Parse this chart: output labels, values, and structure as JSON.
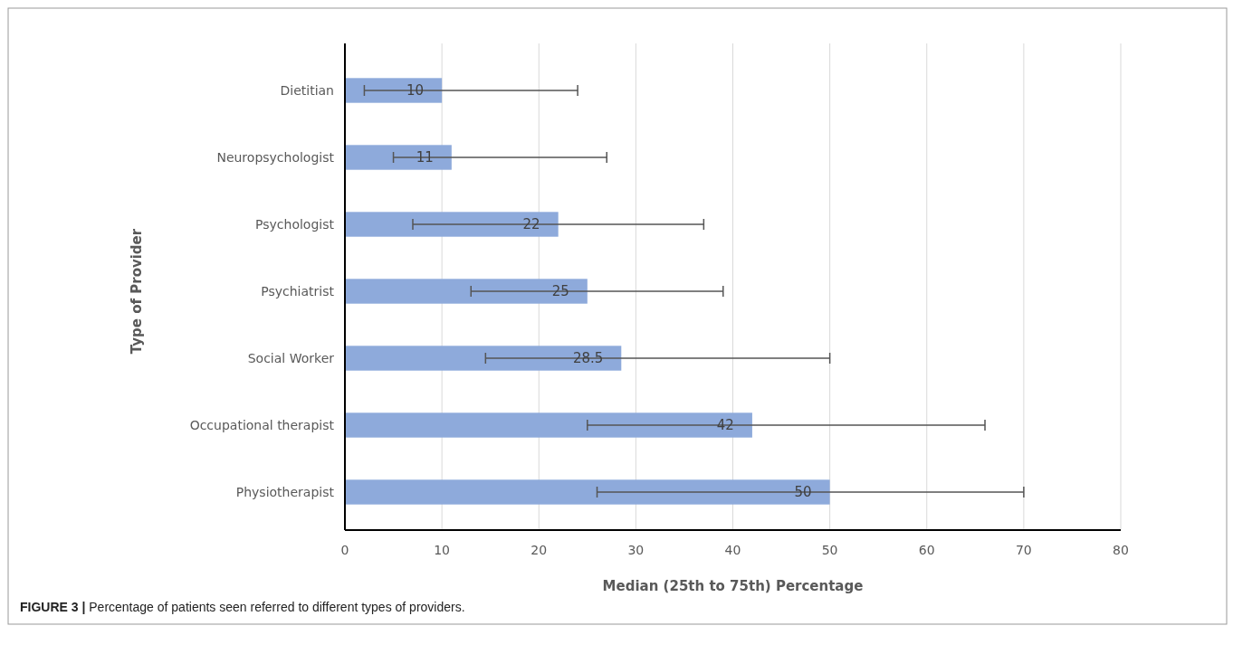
{
  "chart_data": {
    "type": "bar",
    "orientation": "horizontal",
    "ylabel": "Type of Provider",
    "xlabel": "Median  (25th to 75th) Percentage",
    "categories": [
      "Dietitian",
      "Neuropsychologist",
      "Psychologist",
      "Psychiatrist",
      "Social Worker",
      "Occupational therapist",
      "Physiotherapist"
    ],
    "values": [
      10,
      11,
      22,
      25,
      28.5,
      42,
      50
    ],
    "color": "#8eaadb",
    "errors": [
      [
        2,
        24
      ],
      [
        5,
        27
      ],
      [
        7,
        37
      ],
      [
        13,
        39
      ],
      [
        14.5,
        50
      ],
      [
        25,
        66
      ],
      [
        26,
        70
      ]
    ],
    "xlim": [
      0,
      80
    ],
    "xticks": [
      0,
      10,
      20,
      30,
      40,
      50,
      60,
      70,
      80
    ],
    "grid": "x",
    "data_labels": true,
    "annotations": [
      "FIGURE 3 | Percentage of patients seen referred to different types of providers."
    ]
  }
}
